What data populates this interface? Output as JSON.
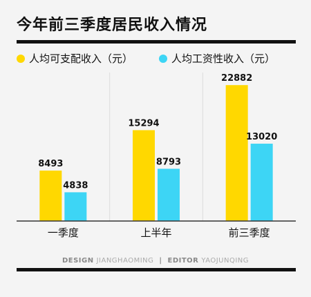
{
  "title": "今年前三季度居民收入情况",
  "legend": [
    {
      "label": "人均可支配收入（元）",
      "color": "#ffd800"
    },
    {
      "label": "人均工资性收入（元）",
      "color": "#3dd5f5"
    }
  ],
  "chart_data": {
    "type": "bar",
    "title": "今年前三季度居民收入情况",
    "categories": [
      "一季度",
      "上半年",
      "前三季度"
    ],
    "series": [
      {
        "name": "人均可支配收入（元）",
        "values": [
          8493,
          15294,
          22882
        ],
        "color": "#ffd800"
      },
      {
        "name": "人均工资性收入（元）",
        "values": [
          4838,
          8793,
          13020
        ],
        "color": "#3dd5f5"
      }
    ],
    "ylim": [
      0,
      25000
    ],
    "grid": false,
    "legend_position": "top-left"
  },
  "credit": {
    "design_label": "DESIGN",
    "design_name": "JIANGHAOMING",
    "editor_label": "EDITOR",
    "editor_name": "YAOJUNQING"
  }
}
